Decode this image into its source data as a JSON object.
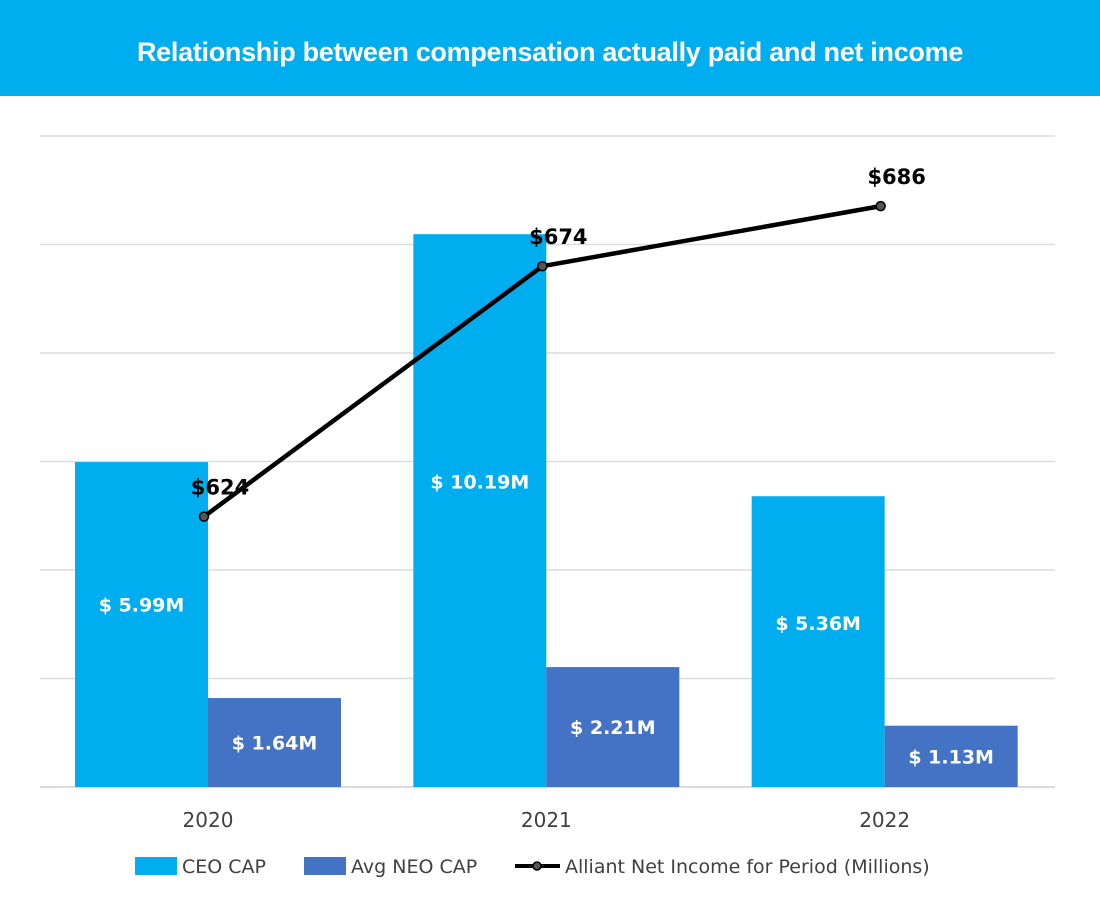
{
  "header": {
    "title": "Relationship between compensation actually paid and net income"
  },
  "chart_data": {
    "type": "bar",
    "categories": [
      "2020",
      "2021",
      "2022"
    ],
    "series": [
      {
        "name": "CEO CAP",
        "type": "bar",
        "values": [
          5.99,
          10.19,
          5.36
        ],
        "labels": [
          "$ 5.99M",
          "$ 10.19M",
          "$ 5.36M"
        ],
        "color": "#00adef"
      },
      {
        "name": "Avg NEO CAP",
        "type": "bar",
        "values": [
          1.64,
          2.21,
          1.13
        ],
        "labels": [
          "$ 1.64M",
          "$ 2.21M",
          "$ 1.13M"
        ],
        "color": "#4472c4"
      },
      {
        "name": "Alliant Net Income for Period (Millions)",
        "type": "line",
        "values": [
          624,
          674,
          686
        ],
        "labels": [
          "$624",
          "$674",
          "$686"
        ],
        "color": "#000000"
      }
    ],
    "ylim_bars": [
      0,
      12
    ],
    "ylim_line": [
      570,
      700
    ],
    "grid": true,
    "legend_position": "bottom"
  }
}
